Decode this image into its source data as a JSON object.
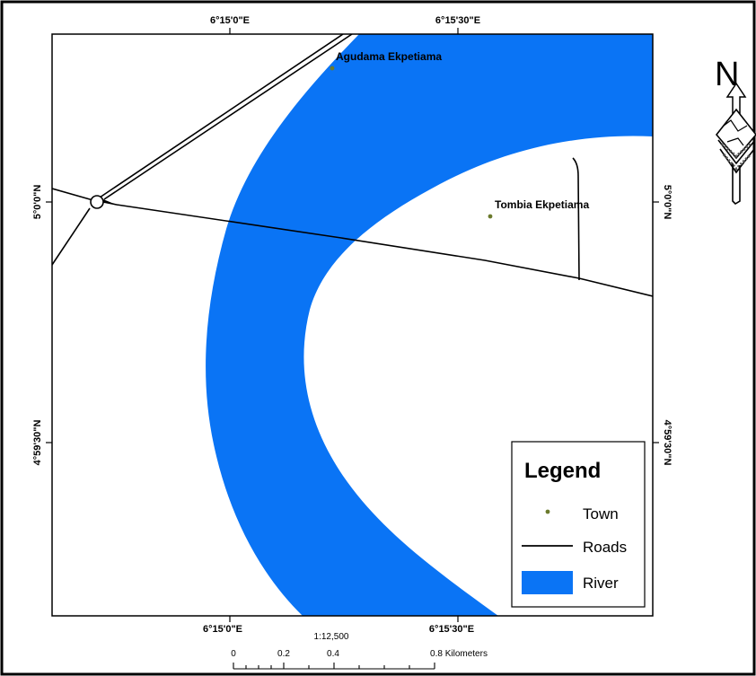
{
  "map": {
    "colors": {
      "river": "#0A74F5",
      "road": "#000000",
      "town": "#6B7A2C",
      "background": "#FFFFFF"
    },
    "graticule": {
      "top": [
        "6°15'0\"E",
        "6°15'30\"E"
      ],
      "bottom": [
        "6°15'0\"E",
        "6°15'30\"E"
      ],
      "left": [
        "5°0'0\"N",
        "4°59'30\"N"
      ],
      "right": [
        "5°0'0\"N",
        "4°59'30\"N"
      ]
    },
    "towns": [
      "Agudama Ekpetiama",
      "Tombia Ekpetiama"
    ]
  },
  "legend": {
    "title": "Legend",
    "items": [
      {
        "label": "Town",
        "symbol": "point"
      },
      {
        "label": "Roads",
        "symbol": "line"
      },
      {
        "label": "River",
        "symbol": "fill"
      }
    ]
  },
  "north_arrow": {
    "letter": "N",
    "icon": "north-arrow-icon"
  },
  "scale": {
    "ratio": "1:12,500",
    "ticks": [
      "0",
      "0.2",
      "0.4",
      "0.8 Kilometers"
    ]
  }
}
